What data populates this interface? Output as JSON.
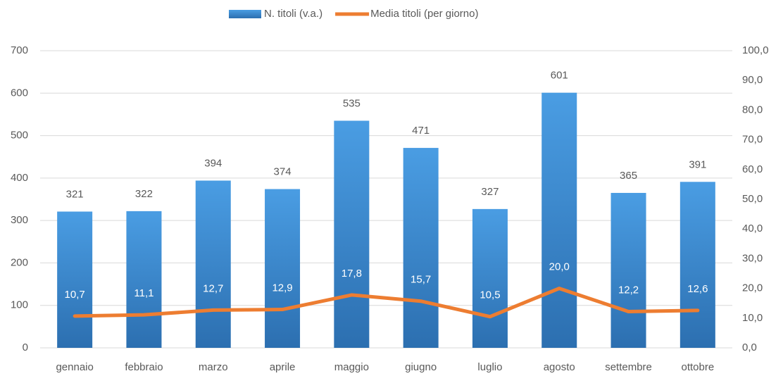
{
  "chart_data": {
    "type": "bar",
    "categories": [
      "gennaio",
      "febbraio",
      "marzo",
      "aprile",
      "maggio",
      "giugno",
      "luglio",
      "agosto",
      "settembre",
      "ottobre"
    ],
    "series": [
      {
        "name": "N. titoli (v.a.)",
        "type": "bar",
        "color": "#3a8ad6",
        "values": [
          321,
          322,
          394,
          374,
          535,
          471,
          327,
          601,
          365,
          391
        ]
      },
      {
        "name": "Media titoli (per giorno)",
        "type": "line",
        "axis": "y2",
        "color": "#ed7d31",
        "values": [
          10.7,
          11.1,
          12.7,
          12.9,
          17.8,
          15.7,
          10.5,
          20.0,
          12.2,
          12.6
        ],
        "value_labels": [
          "10,7",
          "11,1",
          "12,7",
          "12,9",
          "17,8",
          "15,7",
          "10,5",
          "20,0",
          "12,2",
          "12,6"
        ]
      }
    ],
    "ylim": [
      0,
      700
    ],
    "yticks": [
      0,
      100,
      200,
      300,
      400,
      500,
      600,
      700
    ],
    "y2lim": [
      0,
      100
    ],
    "y2ticks": [
      {
        "value": 0,
        "label": "0,0"
      },
      {
        "value": 10,
        "label": "10,0"
      },
      {
        "value": 20,
        "label": "20,0"
      },
      {
        "value": 30,
        "label": "30,0"
      },
      {
        "value": 40,
        "label": "40,0"
      },
      {
        "value": 50,
        "label": "50,0"
      },
      {
        "value": 60,
        "label": "60,0"
      },
      {
        "value": 70,
        "label": "70,0"
      },
      {
        "value": 80,
        "label": "80,0"
      },
      {
        "value": 90,
        "label": "90,0"
      },
      {
        "value": 100,
        "label": "100,0"
      }
    ],
    "grid": true,
    "legend": "top"
  }
}
